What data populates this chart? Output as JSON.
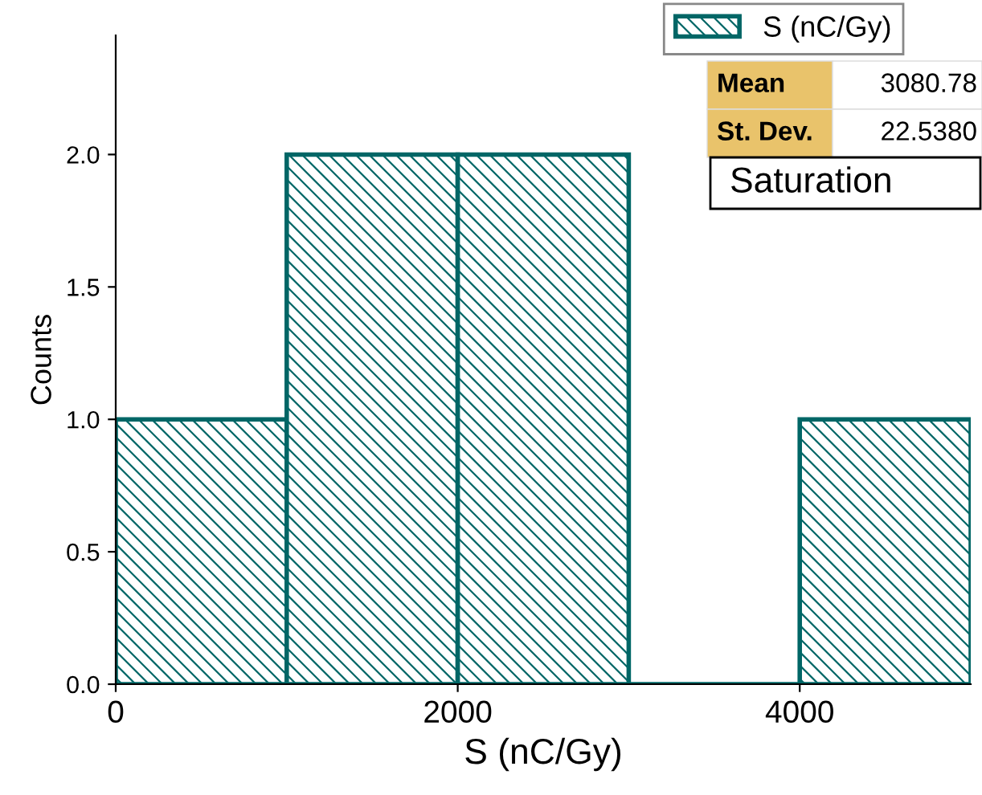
{
  "chart_data": {
    "type": "histogram",
    "xlabel": "S (nC/Gy)",
    "ylabel": "Counts",
    "bins": [
      0,
      1000,
      2000,
      3000,
      4000,
      5000
    ],
    "series": [
      {
        "name": "S (nC/Gy)",
        "color": "#006666",
        "values": [
          1,
          2,
          2,
          0,
          1
        ]
      }
    ],
    "xlim": [
      0,
      5000
    ],
    "xticks": [
      0,
      2000,
      4000
    ],
    "ylim": [
      0,
      2.45
    ],
    "yticks": [
      {
        "value": 0,
        "label": "0.0"
      },
      {
        "value": 0.5,
        "label": "0.5"
      },
      {
        "value": 1,
        "label": "1.0"
      },
      {
        "value": 1.5,
        "label": "1.5"
      },
      {
        "value": 2,
        "label": "2.0"
      }
    ],
    "grid": false,
    "legend": "top right",
    "annotations": [
      "Mean",
      "3080.78",
      "St. Dev.",
      "22.5380",
      "Saturation"
    ]
  }
}
